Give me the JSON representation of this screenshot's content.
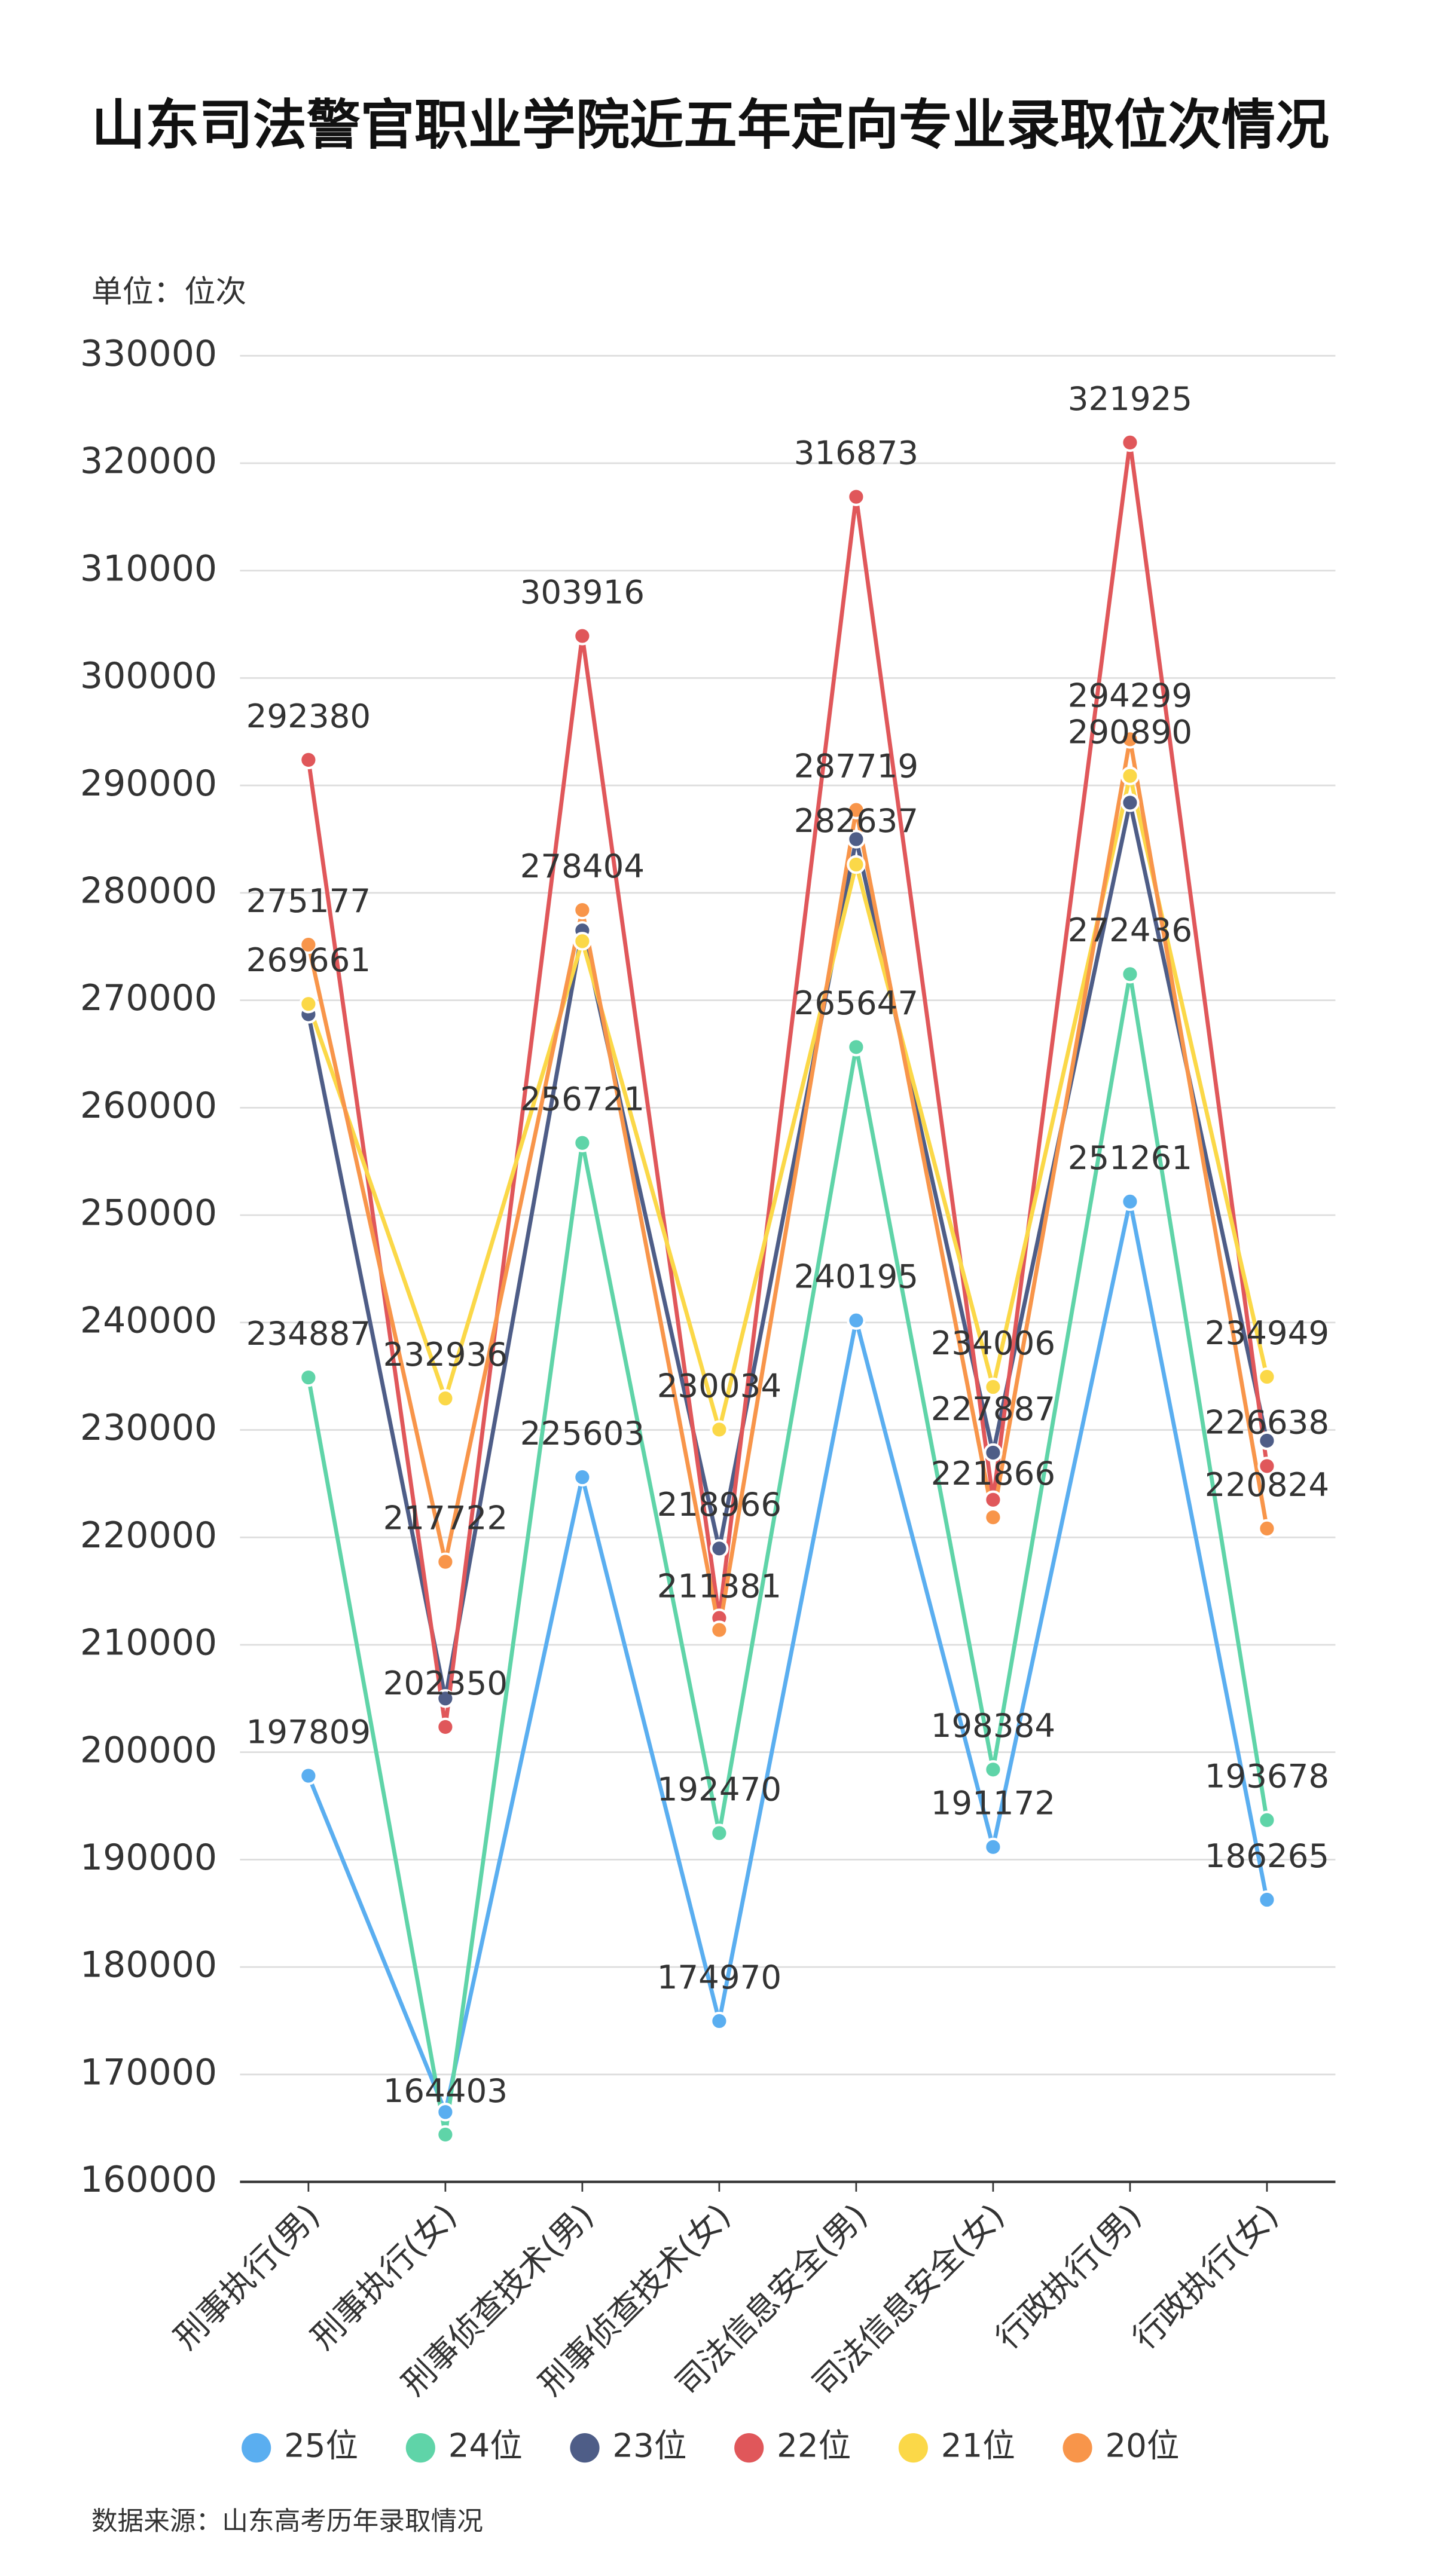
{
  "chart_data": {
    "type": "line",
    "title": "山东司法警官职业学院近五年定向专业录取位次情况",
    "subtitle": "单位：位次",
    "source": "数据来源：山东高考历年录取情况",
    "categories": [
      "刑事执行(男)",
      "刑事执行(女)",
      "刑事侦查技术(男)",
      "刑事侦查技术(女)",
      "司法信息安全(男)",
      "司法信息安全(女)",
      "行政执行(男)",
      "行政执行(女)"
    ],
    "ylim": [
      160000,
      330000
    ],
    "yticks": [
      160000,
      170000,
      180000,
      190000,
      200000,
      210000,
      220000,
      230000,
      240000,
      250000,
      260000,
      270000,
      280000,
      290000,
      300000,
      310000,
      320000,
      330000
    ],
    "grid": true,
    "series": [
      {
        "name": "25位",
        "color": "#5aaef0",
        "values": [
          197809,
          166500,
          225603,
          174970,
          240195,
          191172,
          251261,
          186265
        ],
        "value_labels": [
          "197809",
          null,
          "225603",
          "174970",
          "240195",
          "191172",
          "251261",
          "186265"
        ]
      },
      {
        "name": "24位",
        "color": "#5fd4a8",
        "values": [
          234887,
          164403,
          256721,
          192470,
          265647,
          198384,
          272436,
          193678
        ],
        "value_labels": [
          "234887",
          "164403",
          "256721",
          "192470",
          "265647",
          "198384",
          "272436",
          "193678"
        ]
      },
      {
        "name": "23位",
        "color": "#4e5d87",
        "values": [
          268700,
          205000,
          276500,
          218966,
          285000,
          227887,
          288400,
          229000
        ],
        "value_labels": [
          null,
          null,
          null,
          "218966",
          null,
          "227887",
          null,
          null
        ]
      },
      {
        "name": "22位",
        "color": "#e0575a",
        "values": [
          292380,
          202350,
          303916,
          212500,
          316873,
          223500,
          321925,
          226638
        ],
        "value_labels": [
          "292380",
          "202350",
          "303916",
          null,
          "316873",
          null,
          "321925",
          "226638"
        ]
      },
      {
        "name": "21位",
        "color": "#fbd848",
        "values": [
          269661,
          232936,
          275500,
          230034,
          282637,
          234006,
          290890,
          234949
        ],
        "value_labels": [
          "269661",
          "232936",
          null,
          "230034",
          "282637",
          "234006",
          "290890",
          "234949"
        ]
      },
      {
        "name": "20位",
        "color": "#f8954a",
        "values": [
          275177,
          217722,
          278404,
          211381,
          287719,
          221866,
          294299,
          220824
        ],
        "value_labels": [
          "275177",
          "217722",
          "278404",
          "211381",
          "287719",
          "221866",
          "294299",
          "220824"
        ]
      }
    ]
  }
}
